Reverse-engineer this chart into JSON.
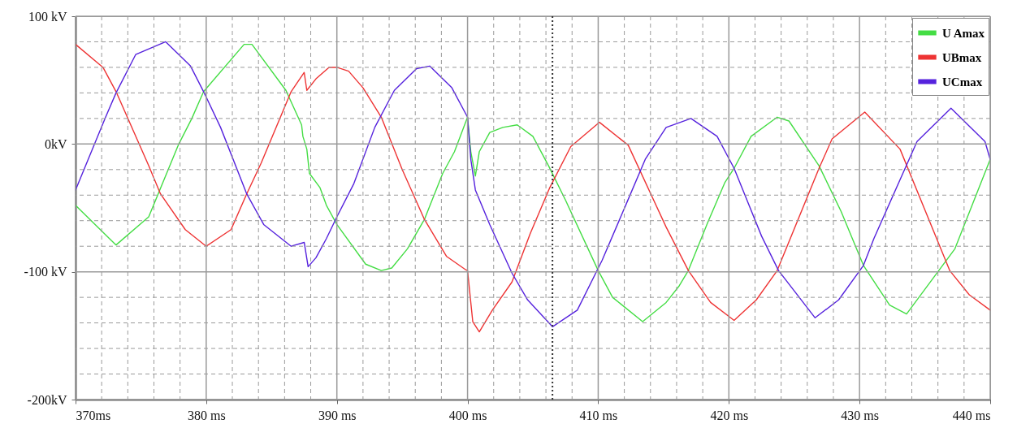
{
  "chart_data": {
    "type": "line",
    "xlim": [
      370,
      440
    ],
    "ylim": [
      -200,
      100
    ],
    "xticks": [
      {
        "value": 370,
        "label": "370ms"
      },
      {
        "value": 372,
        "label": null
      },
      {
        "value": 374,
        "label": null
      },
      {
        "value": 376,
        "label": null
      },
      {
        "value": 378,
        "label": null
      },
      {
        "value": 380,
        "label": "380 ms"
      },
      {
        "value": 382,
        "label": null
      },
      {
        "value": 384,
        "label": null
      },
      {
        "value": 386,
        "label": null
      },
      {
        "value": 388,
        "label": null
      },
      {
        "value": 390,
        "label": "390 ms"
      },
      {
        "value": 392,
        "label": null
      },
      {
        "value": 394,
        "label": null
      },
      {
        "value": 396,
        "label": null
      },
      {
        "value": 398,
        "label": null
      },
      {
        "value": 400,
        "label": "400 ms"
      },
      {
        "value": 402,
        "label": null
      },
      {
        "value": 404,
        "label": null
      },
      {
        "value": 406,
        "label": null
      },
      {
        "value": 408,
        "label": null
      },
      {
        "value": 410,
        "label": "410 ms"
      },
      {
        "value": 412,
        "label": null
      },
      {
        "value": 414,
        "label": null
      },
      {
        "value": 416,
        "label": null
      },
      {
        "value": 418,
        "label": null
      },
      {
        "value": 420,
        "label": "420 ms"
      },
      {
        "value": 422,
        "label": null
      },
      {
        "value": 424,
        "label": null
      },
      {
        "value": 426,
        "label": null
      },
      {
        "value": 428,
        "label": null
      },
      {
        "value": 430,
        "label": "430  ms"
      },
      {
        "value": 432,
        "label": null
      },
      {
        "value": 434,
        "label": null
      },
      {
        "value": 436,
        "label": null
      },
      {
        "value": 438,
        "label": null
      },
      {
        "value": 440,
        "label": "440 ms"
      }
    ],
    "yticks": [
      {
        "value": 100,
        "label": "100 kV"
      },
      {
        "value": 80,
        "label": null
      },
      {
        "value": 60,
        "label": null
      },
      {
        "value": 40,
        "label": null
      },
      {
        "value": 20,
        "label": null
      },
      {
        "value": 0,
        "label": "0kV"
      },
      {
        "value": -20,
        "label": null
      },
      {
        "value": -40,
        "label": null
      },
      {
        "value": -60,
        "label": null
      },
      {
        "value": -80,
        "label": null
      },
      {
        "value": -100,
        "label": "-100 kV"
      },
      {
        "value": -120,
        "label": null
      },
      {
        "value": -140,
        "label": null
      },
      {
        "value": -160,
        "label": null
      },
      {
        "value": -180,
        "label": null
      },
      {
        "value": -200,
        "label": "-200kV"
      }
    ],
    "grid": true,
    "legend": "top right",
    "marker": "none",
    "line_style": "solid",
    "ref_lines": [
      {
        "axis": "x",
        "value": 406.5,
        "color": "#333333",
        "line_style": "dotted"
      }
    ],
    "series": [
      {
        "name": "U Amax",
        "color": "#44dd44",
        "x": [
          370,
          373.1,
          375.6,
          377.9,
          378.9,
          379.8,
          382.9,
          383.5,
          386.1,
          387.3,
          387.4,
          387.7,
          387.9,
          388.7,
          389.2,
          390,
          392.2,
          393.4,
          394.2,
          395.4,
          396.7,
          398.1,
          399,
          400,
          400.25,
          400.6,
          400.9,
          401.7,
          402.7,
          403.8,
          405,
          406.2,
          407.5,
          410,
          411.1,
          413.4,
          415.2,
          416.2,
          416.9,
          418.4,
          419.7,
          420.4,
          421.7,
          423.7,
          424.6,
          426.9,
          428.6,
          430.3,
          432.3,
          433.6,
          437.3,
          440
        ],
        "values": [
          -48,
          -79,
          -57,
          0,
          20,
          41,
          78,
          78,
          42,
          15,
          6,
          -4,
          -23,
          -34,
          -48,
          -63,
          -94,
          -99,
          -97,
          -82,
          -59,
          -23,
          -6,
          21,
          -6,
          -25,
          -6,
          9,
          13,
          15,
          6,
          -17,
          -44,
          -99,
          -120,
          -139,
          -124,
          -111,
          -99,
          -61,
          -30,
          -19,
          6,
          21,
          18,
          -17,
          -53,
          -95,
          -126,
          -133,
          -82,
          -12
        ]
      },
      {
        "name": "UBmax",
        "color": "#ee3333",
        "x": [
          370,
          372.1,
          373.1,
          375.6,
          376.5,
          378.4,
          380,
          381.9,
          383.1,
          384.2,
          386.5,
          387.5,
          387.7,
          388.4,
          389.4,
          390,
          390.9,
          392,
          393.4,
          395,
          396.7,
          398.4,
          399.8,
          400,
          400.4,
          400.9,
          401.9,
          403.4,
          404.8,
          406.3,
          407.9,
          410.1,
          412.3,
          415.2,
          416.9,
          418.6,
          420.4,
          422.1,
          423.7,
          426.9,
          427.9,
          430.4,
          433.1,
          436.9,
          438.4,
          440
        ],
        "values": [
          78,
          60,
          41,
          -17,
          -39,
          -67,
          -80,
          -67,
          -39,
          -15,
          41,
          56,
          42,
          51,
          60,
          60,
          57,
          44,
          21,
          -20,
          -59,
          -88,
          -98,
          -99,
          -139,
          -147,
          -130,
          -108,
          -70,
          -34,
          -2,
          17,
          -1,
          -65,
          -99,
          -124,
          -138,
          -122,
          -99,
          -19,
          4,
          25,
          -4,
          -99,
          -118,
          -130
        ]
      },
      {
        "name": "UCmax",
        "color": "#5522dd",
        "x": [
          370,
          372.3,
          373.1,
          374.6,
          376.9,
          378.8,
          379.8,
          381.1,
          383.1,
          384.4,
          386.5,
          387.5,
          387.8,
          388.4,
          389.2,
          390,
          391.3,
          392.9,
          394.4,
          396.1,
          397.1,
          398.8,
          400,
          400.25,
          400.6,
          401.7,
          403.4,
          404.6,
          406.5,
          408.4,
          410.3,
          412.1,
          413.6,
          415.2,
          417.1,
          419.1,
          420.4,
          422.5,
          423.8,
          426.6,
          428.4,
          430.3,
          431.1,
          434.4,
          437,
          439.6,
          440
        ],
        "values": [
          -36,
          21,
          40,
          70,
          80,
          61,
          41,
          13,
          -39,
          -63,
          -80,
          -77,
          -96,
          -89,
          -74,
          -57,
          -31,
          13,
          42,
          59,
          61,
          44,
          21,
          -12,
          -36,
          -63,
          -101,
          -122,
          -143,
          -130,
          -91,
          -48,
          -12,
          13,
          20,
          6,
          -19,
          -72,
          -99,
          -136,
          -122,
          -95,
          -74,
          2,
          28,
          2,
          -12
        ]
      }
    ]
  }
}
